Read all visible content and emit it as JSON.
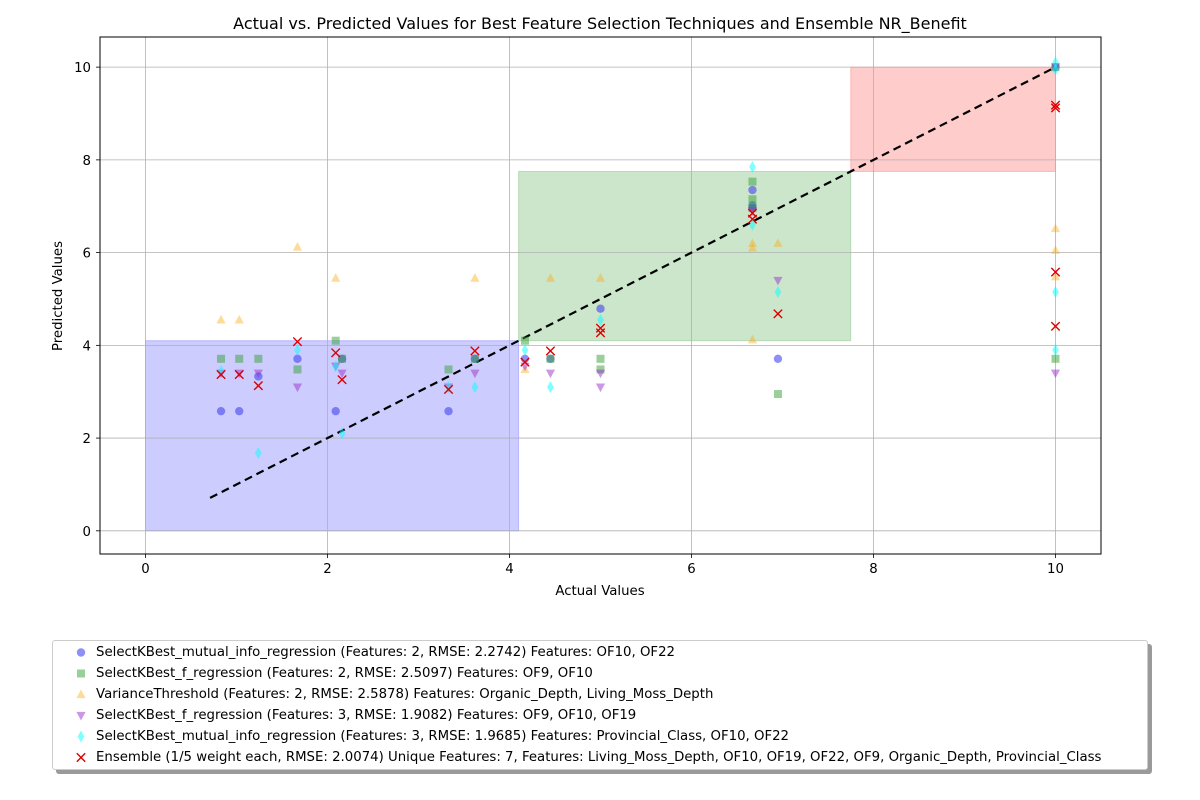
{
  "chart_data": {
    "type": "scatter",
    "title": "Actual vs. Predicted Values for Best Feature Selection Techniques and Ensemble NR_Benefit",
    "xlabel": "Actual Values",
    "ylabel": "Predicted Values",
    "xlim": [
      -0.5,
      10.5
    ],
    "ylim": [
      -0.5,
      10.65
    ],
    "xticks": [
      0,
      2,
      4,
      6,
      8,
      10
    ],
    "yticks": [
      0,
      2,
      4,
      6,
      8,
      10
    ],
    "grid": true,
    "legend_position": "bottom",
    "regions": [
      {
        "x": [
          0,
          4.1
        ],
        "y": [
          0,
          4.1
        ],
        "color": "#0000ff",
        "opacity": 0.2
      },
      {
        "x": [
          4.1,
          7.75
        ],
        "y": [
          4.1,
          7.75
        ],
        "color": "#008000",
        "opacity": 0.2
      },
      {
        "x": [
          7.75,
          10
        ],
        "y": [
          7.75,
          10
        ],
        "color": "#ff0000",
        "opacity": 0.2
      }
    ],
    "reference_line": {
      "x": [
        0.71,
        10
      ],
      "y": [
        0.71,
        10
      ],
      "style": "dashed",
      "color": "#000000"
    },
    "series": [
      {
        "name": "SelectKBest_mutual_info_regression (Features: 2, RMSE: 2.2742) Features: OF10, OF22",
        "marker": "circle",
        "color": "#4444ee",
        "opacity": 0.6,
        "points": [
          [
            0.83,
            2.58
          ],
          [
            1.03,
            2.58
          ],
          [
            1.24,
            3.33
          ],
          [
            1.67,
            3.71
          ],
          [
            2.09,
            2.58
          ],
          [
            2.16,
            3.71
          ],
          [
            3.33,
            2.58
          ],
          [
            3.62,
            3.71
          ],
          [
            4.17,
            3.71
          ],
          [
            4.45,
            3.71
          ],
          [
            5.0,
            4.79
          ],
          [
            6.67,
            7.35
          ],
          [
            6.67,
            7.02
          ],
          [
            6.67,
            6.96
          ],
          [
            6.95,
            3.71
          ],
          [
            10.0,
            10.0
          ]
        ]
      },
      {
        "name": "SelectKBest_f_regression (Features: 2, RMSE: 2.5097) Features: OF9, OF10",
        "marker": "square",
        "color": "#33a033",
        "opacity": 0.5,
        "points": [
          [
            0.83,
            3.71
          ],
          [
            1.03,
            3.71
          ],
          [
            1.24,
            3.71
          ],
          [
            1.67,
            3.48
          ],
          [
            2.09,
            4.1
          ],
          [
            2.16,
            3.71
          ],
          [
            3.33,
            3.48
          ],
          [
            3.62,
            3.71
          ],
          [
            4.17,
            4.1
          ],
          [
            4.45,
            3.71
          ],
          [
            5.0,
            3.71
          ],
          [
            5.0,
            3.48
          ],
          [
            6.67,
            7.53
          ],
          [
            6.67,
            7.15
          ],
          [
            6.67,
            6.96
          ],
          [
            6.95,
            2.95
          ],
          [
            10.0,
            3.71
          ],
          [
            10.0,
            10.0
          ]
        ]
      },
      {
        "name": "VarianceThreshold (Features: 2, RMSE: 2.5878) Features: Organic_Depth, Living_Moss_Depth",
        "marker": "triangle-up",
        "color": "#ffa500",
        "opacity": 0.4,
        "points": [
          [
            0.83,
            4.55
          ],
          [
            1.03,
            4.55
          ],
          [
            1.67,
            6.12
          ],
          [
            2.09,
            5.45
          ],
          [
            3.62,
            5.45
          ],
          [
            4.17,
            3.48
          ],
          [
            4.45,
            5.45
          ],
          [
            5.0,
            5.45
          ],
          [
            6.67,
            6.2
          ],
          [
            6.67,
            6.1
          ],
          [
            6.67,
            4.12
          ],
          [
            6.95,
            6.2
          ],
          [
            10.0,
            6.52
          ],
          [
            10.0,
            6.05
          ],
          [
            10.0,
            5.48
          ]
        ]
      },
      {
        "name": "SelectKBest_f_regression (Features: 3, RMSE: 1.9082) Features: OF9, OF10, OF19",
        "marker": "triangle-down",
        "color": "#9932cc",
        "opacity": 0.5,
        "points": [
          [
            0.83,
            3.4
          ],
          [
            1.03,
            3.4
          ],
          [
            1.24,
            3.4
          ],
          [
            1.67,
            3.1
          ],
          [
            2.09,
            3.55
          ],
          [
            2.16,
            3.4
          ],
          [
            3.33,
            3.1
          ],
          [
            3.62,
            3.4
          ],
          [
            4.17,
            3.55
          ],
          [
            4.45,
            3.4
          ],
          [
            5.0,
            3.4
          ],
          [
            5.0,
            3.1
          ],
          [
            6.67,
            6.9
          ],
          [
            6.95,
            5.4
          ],
          [
            10.0,
            3.4
          ],
          [
            10.0,
            10.0
          ]
        ]
      },
      {
        "name": "SelectKBest_mutual_info_regression (Features: 3, RMSE: 1.9685) Features: Provincial_Class, OF10, OF22",
        "marker": "thin-diamond",
        "color": "#00ffff",
        "opacity": 0.5,
        "points": [
          [
            0.83,
            3.45
          ],
          [
            1.24,
            1.68
          ],
          [
            1.67,
            3.9
          ],
          [
            2.09,
            3.55
          ],
          [
            2.16,
            2.1
          ],
          [
            3.33,
            3.1
          ],
          [
            3.62,
            3.1
          ],
          [
            4.17,
            3.9
          ],
          [
            4.45,
            3.1
          ],
          [
            5.0,
            4.55
          ],
          [
            6.67,
            7.85
          ],
          [
            6.67,
            6.6
          ],
          [
            6.95,
            5.15
          ],
          [
            10.0,
            10.1
          ],
          [
            10.0,
            9.95
          ],
          [
            10.0,
            5.15
          ],
          [
            10.0,
            3.9
          ]
        ]
      },
      {
        "name": "Ensemble (1/5 weight each, RMSE: 2.0074) Unique Features: 7, Features: Living_Moss_Depth, OF10, OF19, OF22, OF9, Organic_Depth, Provincial_Class",
        "marker": "x",
        "color": "#dd0000",
        "opacity": 1,
        "points": [
          [
            0.83,
            3.37
          ],
          [
            1.03,
            3.37
          ],
          [
            1.24,
            3.13
          ],
          [
            1.67,
            4.08
          ],
          [
            2.09,
            3.84
          ],
          [
            2.16,
            3.26
          ],
          [
            3.33,
            3.05
          ],
          [
            3.62,
            3.88
          ],
          [
            4.17,
            3.64
          ],
          [
            4.45,
            3.88
          ],
          [
            5.0,
            4.37
          ],
          [
            5.0,
            4.27
          ],
          [
            6.67,
            6.85
          ],
          [
            6.67,
            6.72
          ],
          [
            6.95,
            4.68
          ],
          [
            10.0,
            9.18
          ],
          [
            10.0,
            9.12
          ],
          [
            10.0,
            5.58
          ],
          [
            10.0,
            4.41
          ]
        ]
      }
    ]
  }
}
